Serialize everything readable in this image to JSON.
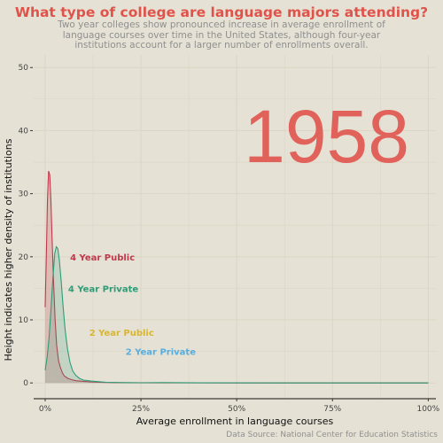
{
  "title": "What type of college are language majors attending?",
  "subtitle": "Two year colleges show pronounced increase in average enrollment of language courses over time in the United States, although four-year institutions account for a larger number of enrollments overall.",
  "caption": "Data Source: National Center for Education Statistics",
  "colors": {
    "background": "#e6e1d5",
    "title": "#e0534a",
    "year": "#e0625a",
    "grid": "#dcd5c3"
  },
  "chart_data": {
    "type": "area",
    "year_label": "1958",
    "xlabel": "Average enrollment in language courses",
    "ylabel": "Height indicates higher density of institutions",
    "xlim": [
      -0.03,
      1.02
    ],
    "ylim": [
      -2.5,
      52
    ],
    "x_ticks": [
      {
        "value": 0,
        "label": "0%"
      },
      {
        "value": 0.25,
        "label": "25%"
      },
      {
        "value": 0.5,
        "label": "50%"
      },
      {
        "value": 0.75,
        "label": "75%"
      },
      {
        "value": 1,
        "label": "100%"
      }
    ],
    "y_ticks": [
      {
        "value": 0,
        "label": "0"
      },
      {
        "value": 10,
        "label": "10"
      },
      {
        "value": 20,
        "label": "20"
      },
      {
        "value": 30,
        "label": "30"
      },
      {
        "value": 40,
        "label": "40"
      },
      {
        "value": 50,
        "label": "50"
      }
    ],
    "grid": true,
    "legend": "direct labels",
    "series": [
      {
        "name": "4 Year Public",
        "color": "#c0394b",
        "fill": "rgba(192,57,75,0.22)",
        "label_at": [
          0.065,
          20
        ],
        "points": [
          [
            0.0,
            12
          ],
          [
            0.003,
            20
          ],
          [
            0.006,
            29
          ],
          [
            0.009,
            33.6
          ],
          [
            0.012,
            33
          ],
          [
            0.015,
            29
          ],
          [
            0.018,
            23
          ],
          [
            0.022,
            16
          ],
          [
            0.026,
            10
          ],
          [
            0.03,
            6
          ],
          [
            0.035,
            3.5
          ],
          [
            0.04,
            2.4
          ],
          [
            0.045,
            1.6
          ],
          [
            0.05,
            1.1
          ],
          [
            0.06,
            0.7
          ],
          [
            0.07,
            0.5
          ],
          [
            0.08,
            0.35
          ],
          [
            0.1,
            0.25
          ],
          [
            0.12,
            0.15
          ],
          [
            0.15,
            0.08
          ],
          [
            0.2,
            0.04
          ],
          [
            0.3,
            0.02
          ],
          [
            0.4,
            0.01
          ],
          [
            0.6,
            0.0
          ],
          [
            0.8,
            0.0
          ],
          [
            1.0,
            0.0
          ]
        ]
      },
      {
        "name": "4 Year Private",
        "color": "#2a9d78",
        "fill": "rgba(42,157,120,0.18)",
        "label_at": [
          0.06,
          15
        ],
        "points": [
          [
            0.0,
            2
          ],
          [
            0.005,
            4
          ],
          [
            0.01,
            7
          ],
          [
            0.015,
            11.5
          ],
          [
            0.02,
            16.5
          ],
          [
            0.025,
            20.5
          ],
          [
            0.029,
            21.6
          ],
          [
            0.033,
            21.3
          ],
          [
            0.037,
            19.5
          ],
          [
            0.042,
            16
          ],
          [
            0.047,
            12
          ],
          [
            0.052,
            8.5
          ],
          [
            0.058,
            5.5
          ],
          [
            0.065,
            3.2
          ],
          [
            0.072,
            1.9
          ],
          [
            0.08,
            1.2
          ],
          [
            0.09,
            0.7
          ],
          [
            0.1,
            0.45
          ],
          [
            0.12,
            0.3
          ],
          [
            0.14,
            0.2
          ],
          [
            0.16,
            0.1
          ],
          [
            0.2,
            0.05
          ],
          [
            0.25,
            0.03
          ],
          [
            0.31,
            0.05
          ],
          [
            0.4,
            0.02
          ],
          [
            0.6,
            0.0
          ],
          [
            0.8,
            0.0
          ],
          [
            1.0,
            0.0
          ]
        ]
      },
      {
        "name": "2 Year Public",
        "color": "#d9b630",
        "label_at": [
          0.115,
          8
        ],
        "points": []
      },
      {
        "name": "2 Year Private",
        "color": "#56aee0",
        "label_at": [
          0.21,
          5
        ],
        "points": []
      }
    ]
  }
}
